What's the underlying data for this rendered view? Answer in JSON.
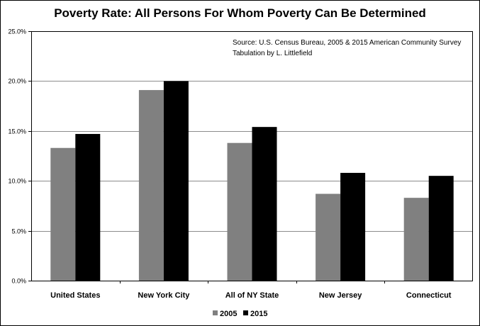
{
  "chart_data": {
    "type": "bar",
    "title": "Poverty Rate:  All Persons For Whom Poverty Can Be Determined",
    "xlabel": "",
    "ylabel": "",
    "categories": [
      "United States",
      "New York City",
      "All of NY State",
      "New Jersey",
      "Connecticut"
    ],
    "series": [
      {
        "name": "2005",
        "color": "#808080",
        "values": [
          13.3,
          19.1,
          13.8,
          8.7,
          8.3
        ]
      },
      {
        "name": "2015",
        "color": "#000000",
        "values": [
          14.7,
          20.0,
          15.4,
          10.8,
          10.5
        ]
      }
    ],
    "ylim": [
      0,
      25
    ],
    "ytick_values": [
      0,
      5,
      10,
      15,
      20,
      25
    ],
    "ytick_labels": [
      "0.0%",
      "5.0%",
      "10.0%",
      "15.0%",
      "20.0%",
      "25.0%"
    ],
    "grid": true,
    "legend_position": "bottom-center",
    "annotations": [
      "Source:  U.S. Census Bureau, 2005 & 2015 American Community Survey",
      "Tabulation by L. Littlefield"
    ]
  }
}
